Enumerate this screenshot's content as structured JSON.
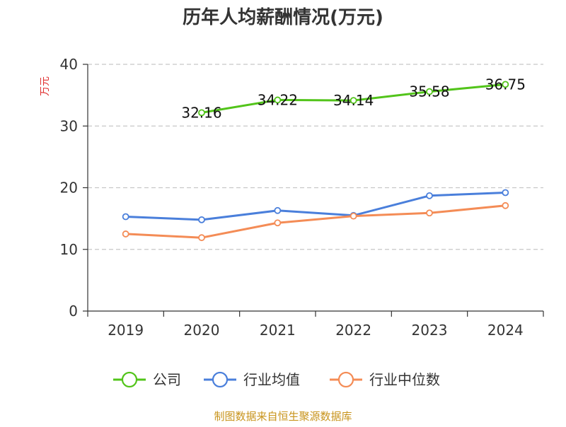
{
  "chart_data": {
    "type": "line",
    "title": "历年人均薪酬情况(万元)",
    "ylabel": "万元",
    "xlabel": "",
    "categories": [
      "2019",
      "2020",
      "2021",
      "2022",
      "2023",
      "2024"
    ],
    "ylim": [
      0,
      40
    ],
    "yticks": [
      "0",
      "10",
      "20",
      "30",
      "40"
    ],
    "grid": true,
    "legend_position": "bottom",
    "series": [
      {
        "name": "公司",
        "color": "#52c41a",
        "values": [
          null,
          32.16,
          34.22,
          34.14,
          35.58,
          36.75
        ],
        "labels": [
          "",
          "32.16",
          "34.22",
          "34.14",
          "35.58",
          "36.75"
        ]
      },
      {
        "name": "行业均值",
        "color": "#4a7fdb",
        "values": [
          15.3,
          14.8,
          16.3,
          15.5,
          18.7,
          19.2
        ],
        "labels": [
          "",
          "",
          "",
          "",
          "",
          ""
        ]
      },
      {
        "name": "行业中位数",
        "color": "#f48c56",
        "values": [
          12.5,
          11.9,
          14.3,
          15.4,
          15.9,
          17.1
        ],
        "labels": [
          "",
          "",
          "",
          "",
          "",
          ""
        ]
      }
    ]
  },
  "footer": {
    "source": "制图数据来自恒生聚源数据库"
  }
}
